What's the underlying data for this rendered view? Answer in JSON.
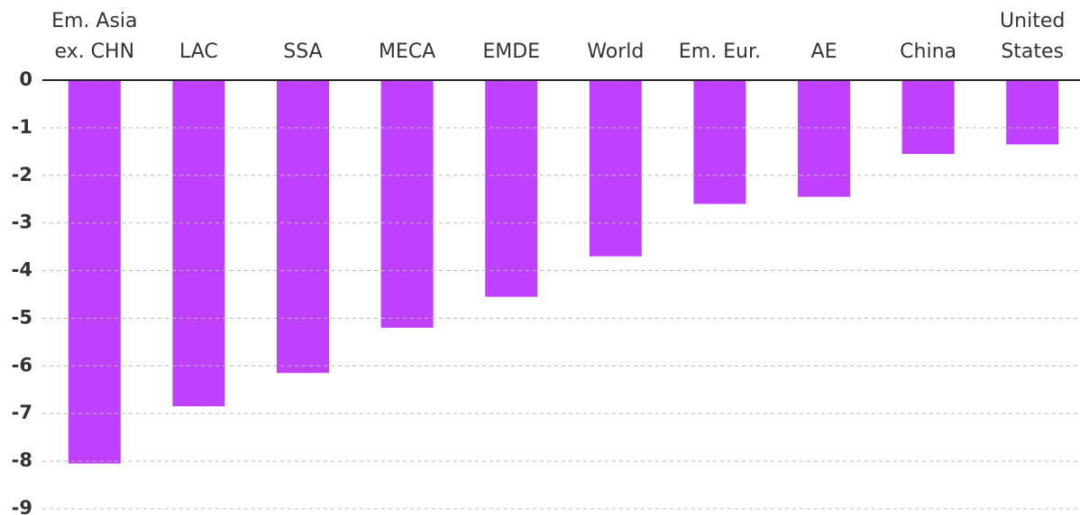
{
  "chart_data": {
    "type": "bar",
    "categories": [
      "Em. Asia\nex. CHN",
      "LAC",
      "SSA",
      "MECA",
      "EMDE",
      "World",
      "Em. Eur.",
      "AE",
      "China",
      "United\nStates"
    ],
    "values": [
      -8.05,
      -6.85,
      -6.15,
      -5.2,
      -4.55,
      -3.7,
      -2.6,
      -2.45,
      -1.55,
      -1.35
    ],
    "color": "#bf40ff",
    "ylim": [
      -9,
      0
    ],
    "yticks": [
      0,
      -1,
      -2,
      -3,
      -4,
      -5,
      -6,
      -7,
      -8,
      -9
    ],
    "grid": true
  }
}
